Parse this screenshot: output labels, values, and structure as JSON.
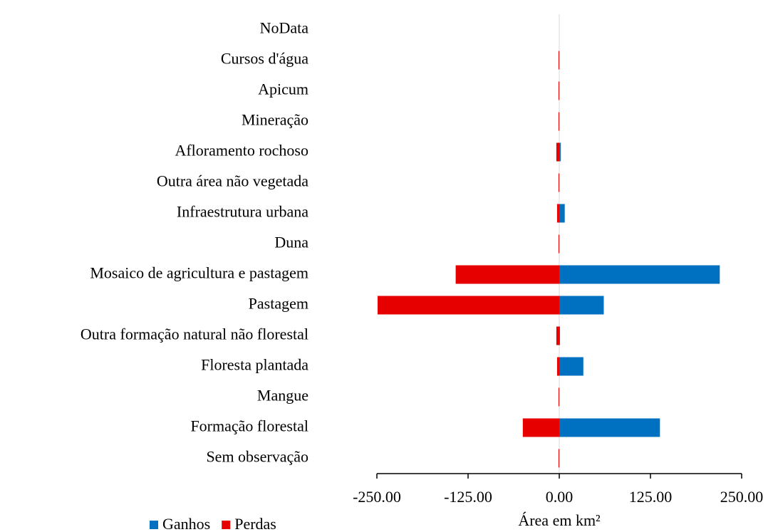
{
  "chart_data": {
    "type": "bar",
    "orientation": "horizontal",
    "x_axis_label": "Área em km²",
    "categories": [
      "NoData",
      "Cursos d'água",
      "Apicum",
      "Mineração",
      "Afloramento rochoso",
      "Outra área não vegetada",
      "Infraestrutura urbana",
      "Duna",
      "Mosaico de agricultura e pastagem",
      "Pastagem",
      "Outra formação natural não florestal",
      "Floresta plantada",
      "Mangue",
      "Formação florestal",
      "Sem observação"
    ],
    "series": [
      {
        "name": "Ganhos",
        "color": "#0070c0",
        "values": [
          0,
          0,
          0,
          0,
          2,
          0,
          7.5,
          0,
          220,
          61,
          1,
          33,
          0,
          138,
          0
        ]
      },
      {
        "name": "Perdas",
        "color": "#e60000",
        "values": [
          0,
          -1,
          -1,
          -1,
          -4,
          -1,
          -3,
          -1,
          -142,
          -249,
          -4,
          -3,
          -1,
          -50,
          -1
        ]
      }
    ],
    "xlim": [
      -250,
      250
    ],
    "xticks": [
      {
        "value": -250,
        "label": "-250.00"
      },
      {
        "value": -125,
        "label": "-125.00"
      },
      {
        "value": 0,
        "label": "0.00"
      },
      {
        "value": 125,
        "label": "125.00"
      },
      {
        "value": 250,
        "label": "250.00"
      }
    ],
    "legend": "bottom-left"
  }
}
